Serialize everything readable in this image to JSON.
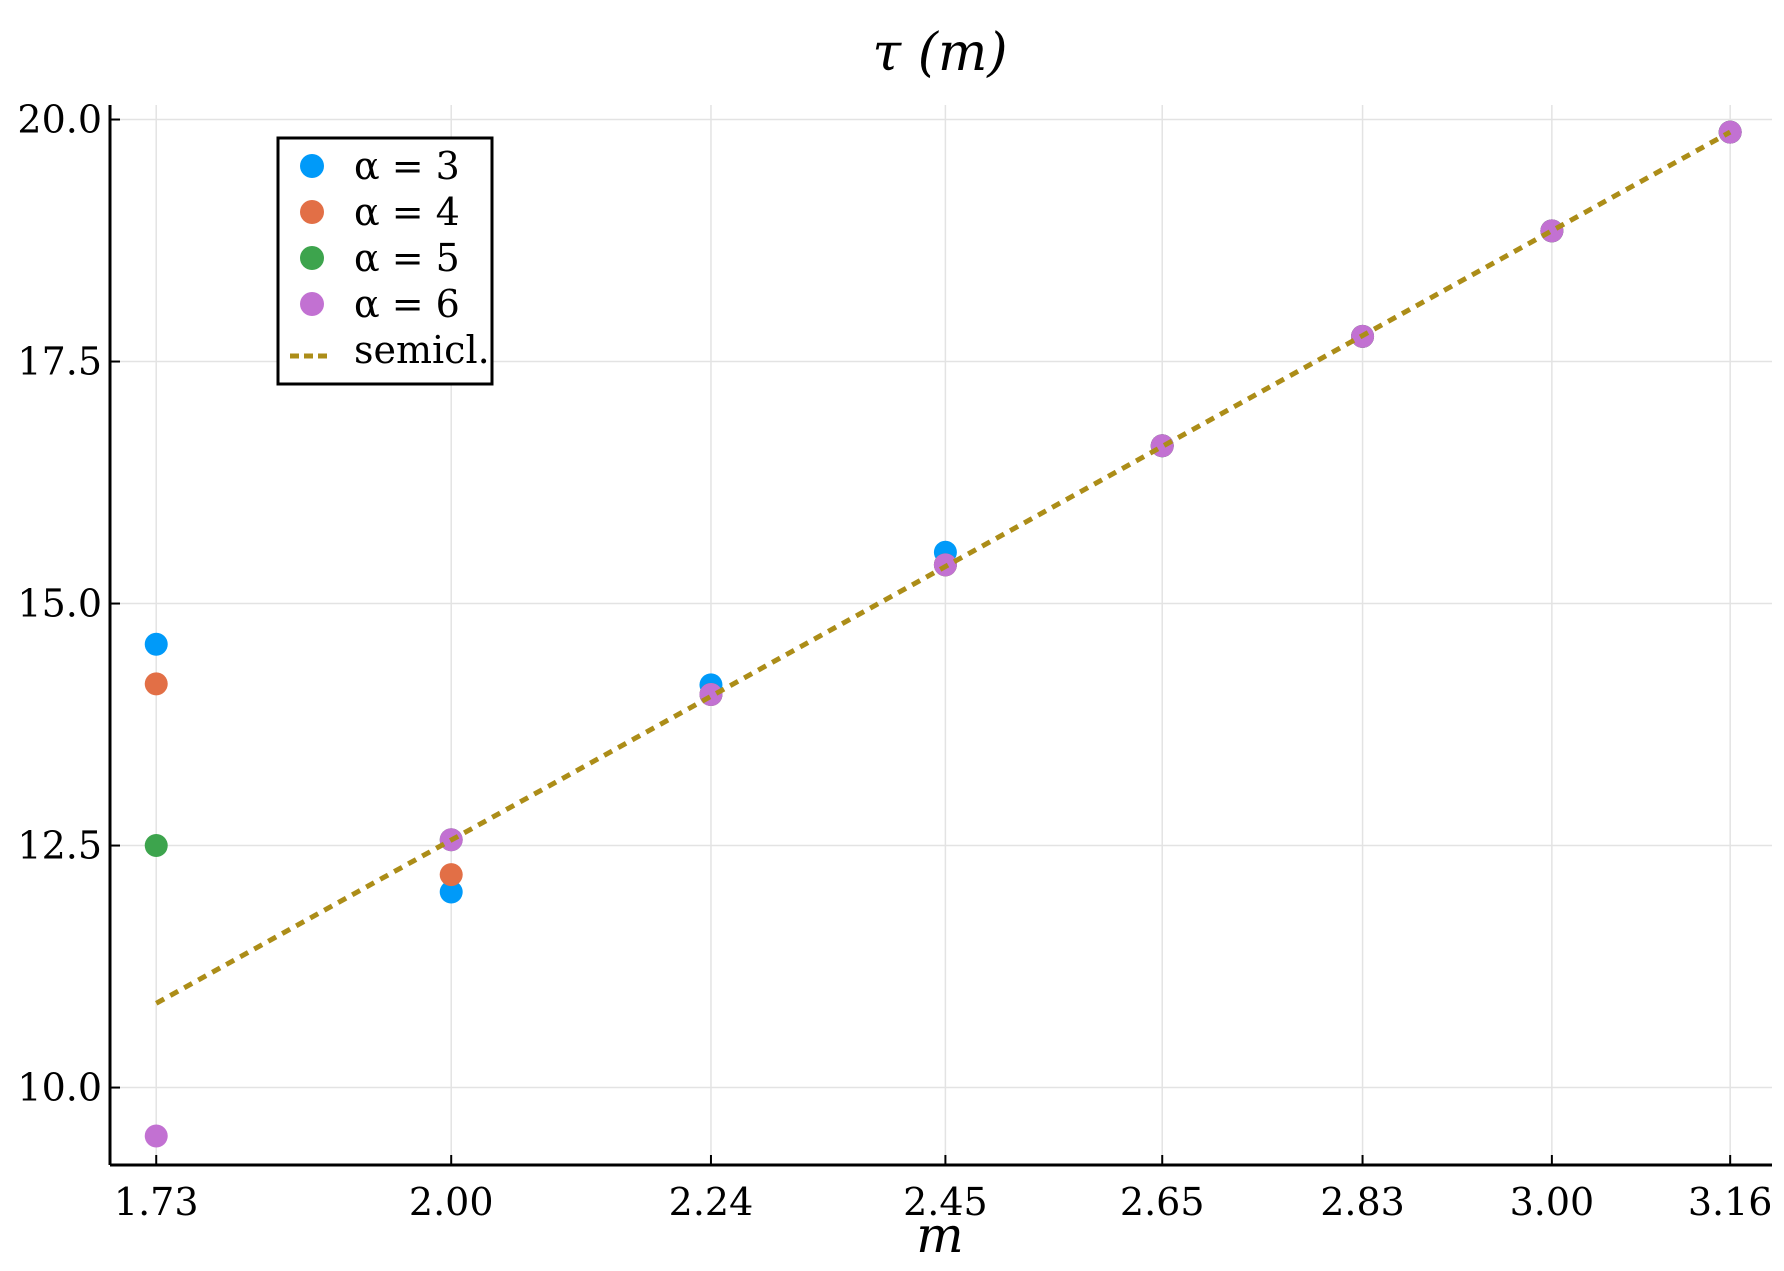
{
  "chart_data": {
    "type": "scatter",
    "title": "τ (m)",
    "xlabel": "m",
    "ylabel": "",
    "x_ticks": [
      1.732,
      2.0,
      2.236,
      2.449,
      2.646,
      2.828,
      3.0,
      3.162
    ],
    "x_tick_labels": [
      "1.73",
      "2.00",
      "2.24",
      "2.45",
      "2.65",
      "2.83",
      "3.00",
      "3.16"
    ],
    "y_ticks": [
      10.0,
      12.5,
      15.0,
      17.5,
      20.0
    ],
    "y_tick_labels": [
      "10.0",
      "12.5",
      "15.0",
      "17.5",
      "20.0"
    ],
    "xlim": [
      1.69,
      3.2
    ],
    "ylim": [
      9.2,
      20.15
    ],
    "grid": true,
    "legend_position": "top-left",
    "series": [
      {
        "name": "α = 3",
        "type": "scatter",
        "color": "#009af9",
        "x": [
          1.732,
          2.0,
          2.236,
          2.449,
          2.646,
          2.828,
          3.0,
          3.162
        ],
        "y": [
          14.58,
          12.02,
          14.16,
          15.53,
          16.63,
          17.76,
          18.85,
          19.87
        ]
      },
      {
        "name": "α = 4",
        "type": "scatter",
        "color": "#e26f46",
        "x": [
          1.732,
          2.0,
          2.236,
          2.449,
          2.646,
          2.828,
          3.0,
          3.162
        ],
        "y": [
          14.17,
          12.2,
          14.06,
          15.4,
          16.63,
          17.76,
          18.85,
          19.87
        ]
      },
      {
        "name": "α = 5",
        "type": "scatter",
        "color": "#3da44d",
        "x": [
          1.732,
          2.0,
          2.236,
          2.449,
          2.646,
          2.828,
          3.0,
          3.162
        ],
        "y": [
          12.5,
          12.56,
          14.06,
          15.4,
          16.63,
          17.76,
          18.85,
          19.87
        ]
      },
      {
        "name": "α = 6",
        "type": "scatter",
        "color": "#c271d2",
        "x": [
          1.732,
          2.0,
          2.236,
          2.449,
          2.646,
          2.828,
          3.0,
          3.162
        ],
        "y": [
          9.5,
          12.56,
          14.06,
          15.4,
          16.63,
          17.76,
          18.85,
          19.87
        ]
      },
      {
        "name": "semicl.",
        "type": "line",
        "style": "dotted",
        "color": "#ac8d18",
        "x": [
          1.732,
          3.162
        ],
        "y": [
          10.87,
          19.87
        ]
      }
    ]
  }
}
